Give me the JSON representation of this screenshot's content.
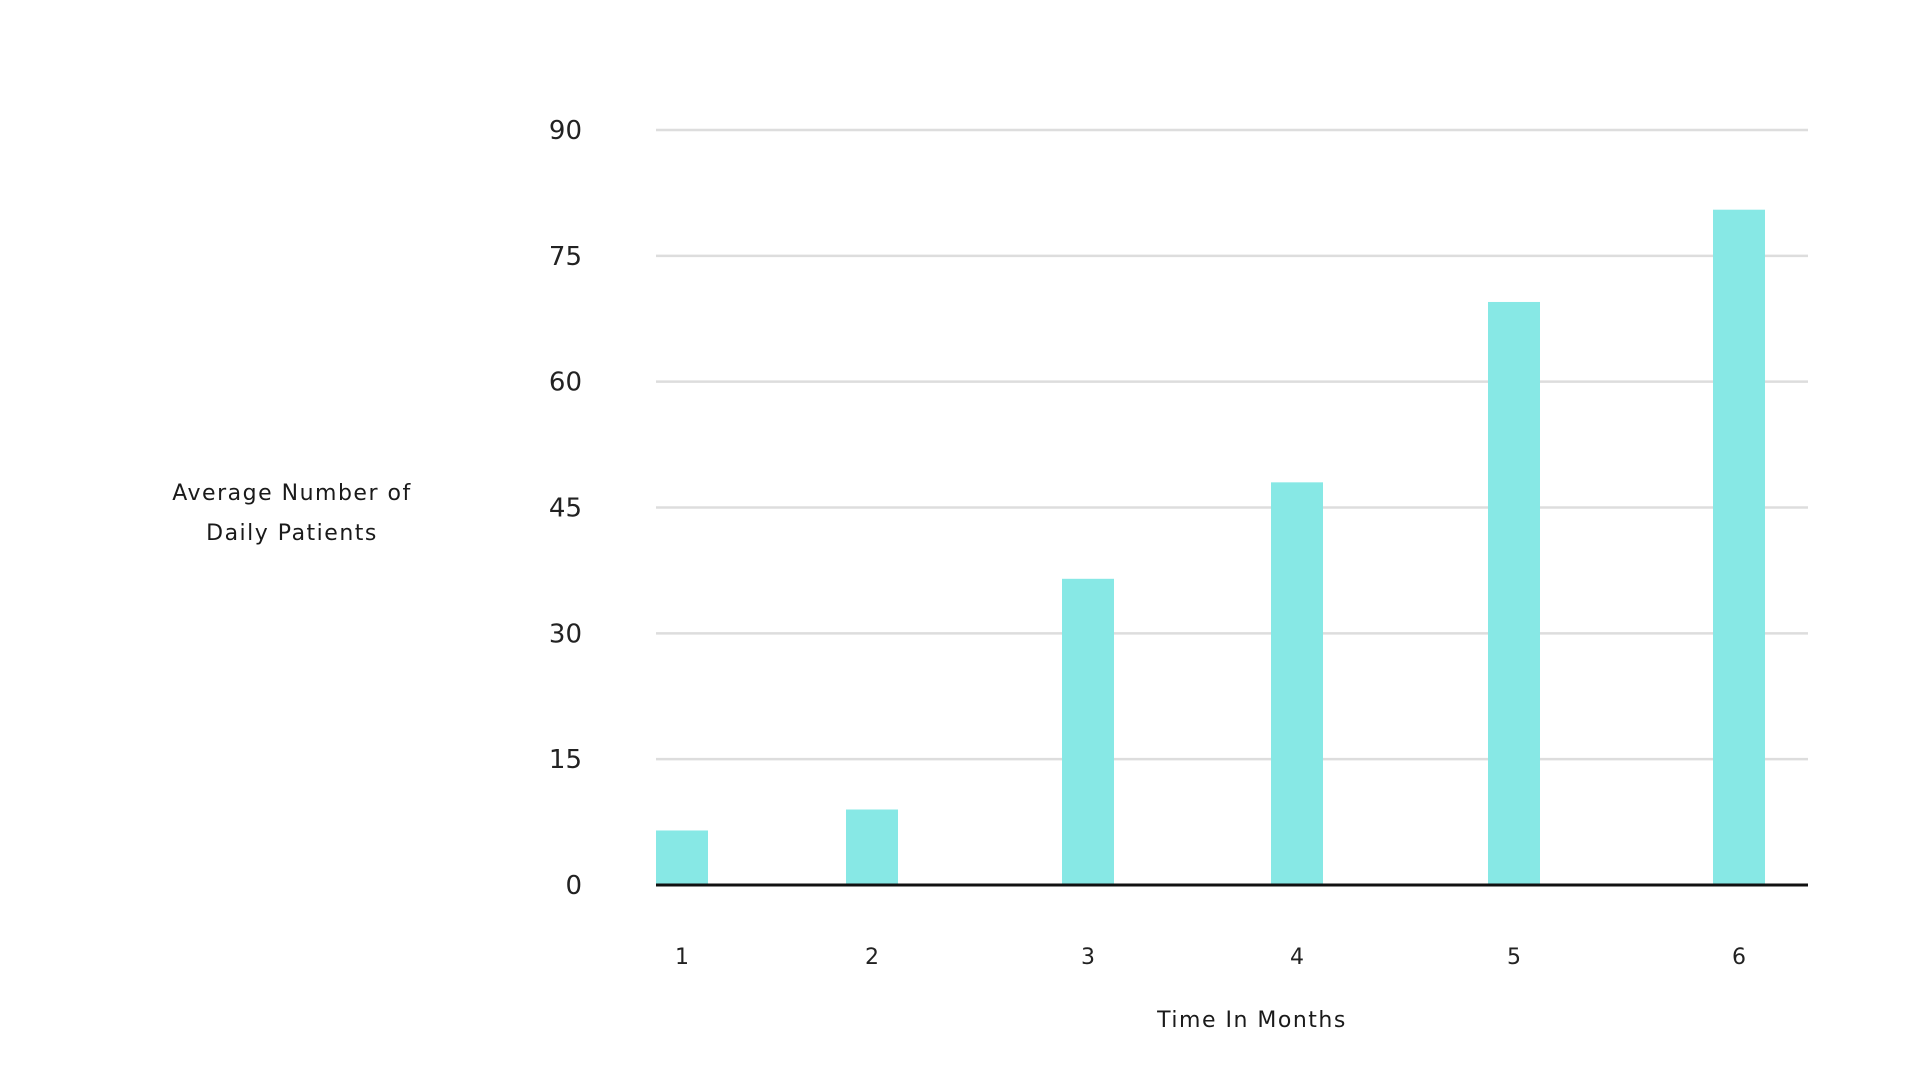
{
  "chart_data": {
    "type": "bar",
    "categories": [
      "1",
      "2",
      "3",
      "4",
      "5",
      "6"
    ],
    "values": [
      6.5,
      9,
      36.5,
      48,
      69.5,
      80.5
    ],
    "xlabel": "Time In Months",
    "ylabel_lines": [
      "Average Number of",
      "Daily Patients"
    ],
    "yticks": [
      0,
      15,
      30,
      45,
      60,
      75,
      90
    ],
    "ylim": [
      0,
      90
    ],
    "grid": true,
    "legend": "none",
    "colors": {
      "bar": "#87e8e5",
      "grid": "#dddddd",
      "baseline": "#111111"
    }
  }
}
